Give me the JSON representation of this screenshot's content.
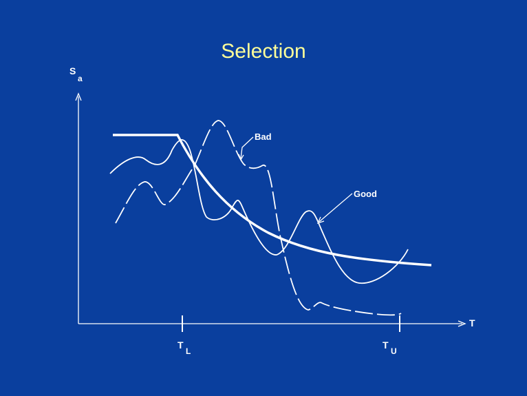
{
  "slide": {
    "title": "Selection",
    "y_axis_label": "S",
    "y_axis_subscript": "a",
    "x_axis_label": "T",
    "tick_lower": "T",
    "tick_lower_subscript": "L",
    "tick_upper": "T",
    "tick_upper_subscript": "U",
    "callout_bad": "Bad",
    "callout_good": "Good"
  },
  "colors": {
    "background": "#0a3f9e",
    "title": "#ffff99",
    "lines": "#ffffff"
  }
}
